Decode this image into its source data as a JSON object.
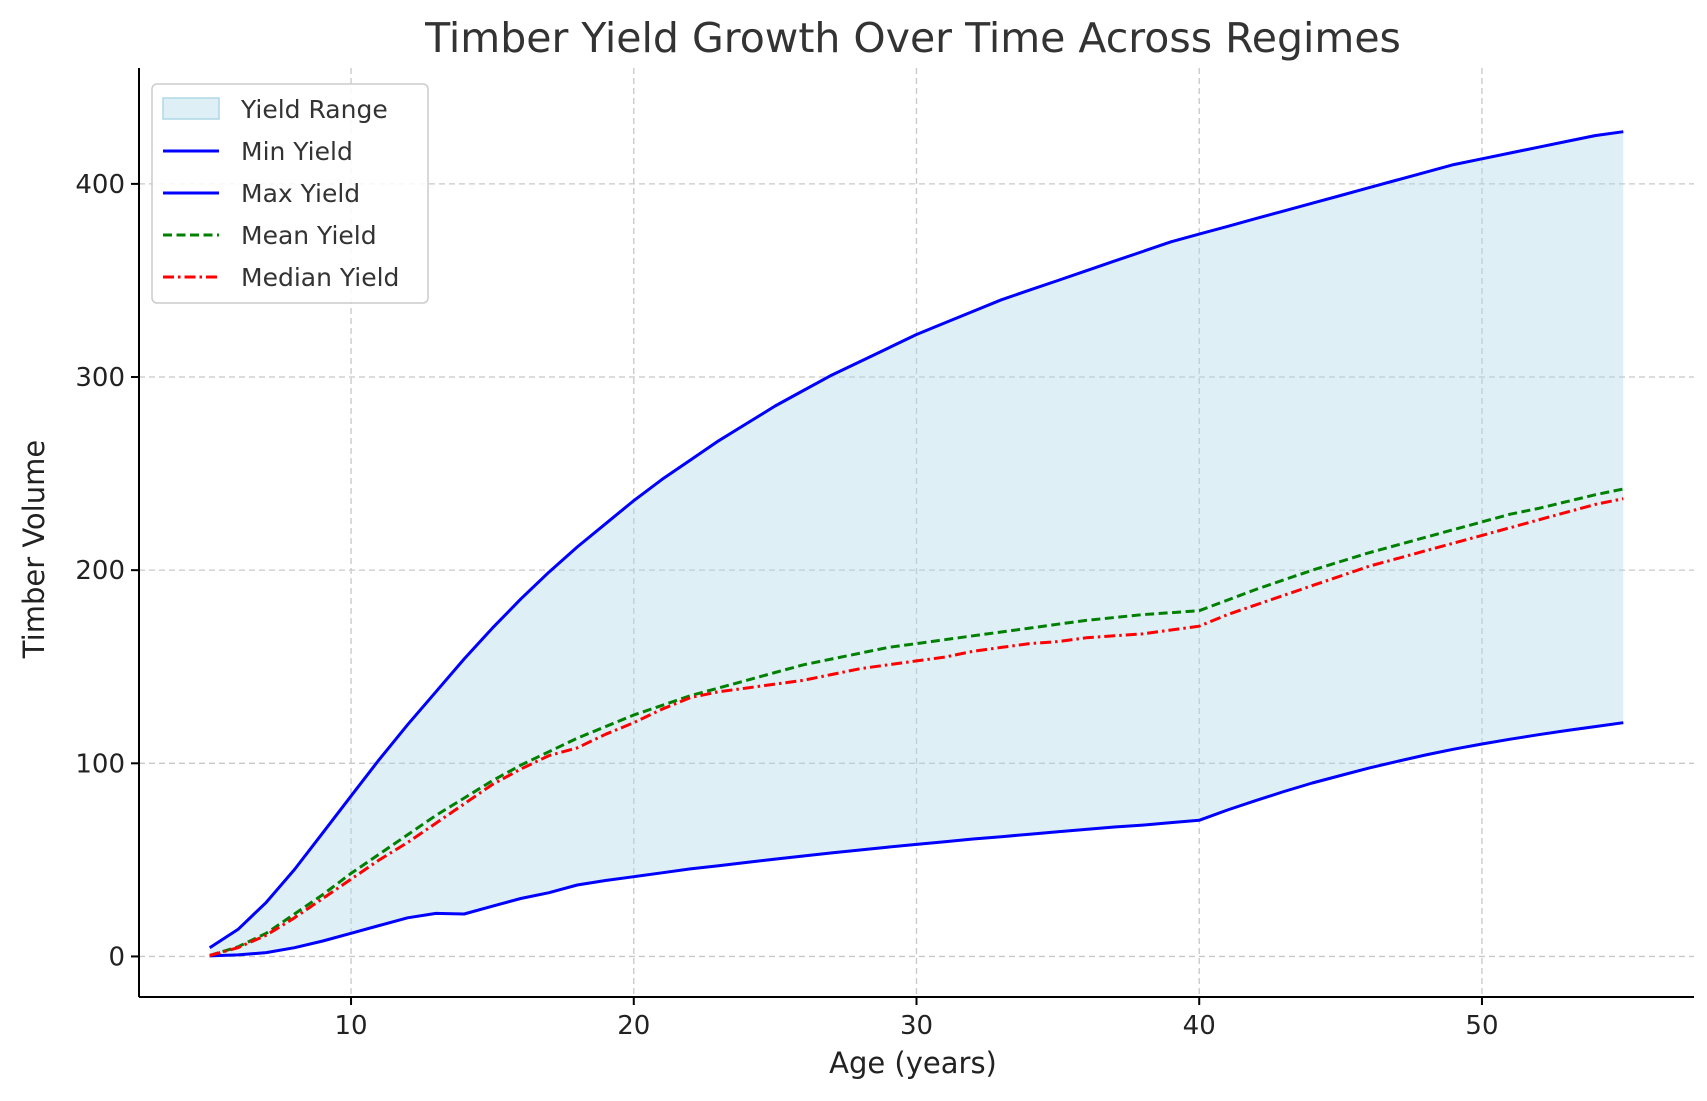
{
  "chart_data": {
    "type": "line",
    "title": "Timber Yield Growth Over Time Across Regimes",
    "xlabel": "Age (years)",
    "ylabel": "Timber Volume",
    "xlim": [
      2.5,
      57.5
    ],
    "ylim": [
      -21,
      460
    ],
    "x_ticks": [
      10,
      20,
      30,
      40,
      50
    ],
    "x_tick_labels": [
      "10",
      "20",
      "30",
      "40",
      "50"
    ],
    "y_ticks": [
      0,
      100,
      200,
      300,
      400
    ],
    "y_tick_labels": [
      "0",
      "100",
      "200",
      "300",
      "400"
    ],
    "grid": true,
    "legend_position": "top-left",
    "x": [
      5,
      6,
      7,
      8,
      9,
      10,
      11,
      12,
      13,
      14,
      15,
      16,
      17,
      18,
      19,
      20,
      21,
      22,
      23,
      24,
      25,
      26,
      27,
      28,
      29,
      30,
      31,
      32,
      33,
      34,
      35,
      36,
      37,
      38,
      39,
      40,
      41,
      42,
      43,
      44,
      45,
      46,
      47,
      48,
      49,
      50,
      51,
      52,
      53,
      54,
      55
    ],
    "range_fill": {
      "name": "Yield Range",
      "color": "#add8e6",
      "opacity": 0.4,
      "lower_series": "Min Yield",
      "upper_series": "Max Yield"
    },
    "series": [
      {
        "name": "Min Yield",
        "color": "#0000ff",
        "style": "solid",
        "values": [
          0.3,
          0.8,
          2,
          4.5,
          8,
          12,
          16,
          20,
          22.3,
          22,
          26,
          30,
          33,
          37,
          39.3,
          41.3,
          43.3,
          45.3,
          47,
          48.7,
          50.4,
          52,
          53.6,
          55.1,
          56.6,
          58,
          59.4,
          60.8,
          62,
          63.3,
          64.6,
          65.8,
          67,
          68,
          69.3,
          70.5,
          75.8,
          80.7,
          85.4,
          89.8,
          93.7,
          97.5,
          101,
          104.3,
          107.3,
          110,
          112.5,
          114.8,
          117,
          119,
          121
        ]
      },
      {
        "name": "Max Yield",
        "color": "#0000ff",
        "style": "solid",
        "values": [
          4.5,
          14,
          28,
          45,
          64,
          83,
          102,
          120,
          137,
          154,
          170,
          185,
          199,
          212,
          224,
          236,
          247,
          257,
          267,
          276,
          285,
          293,
          301,
          308,
          315,
          322,
          328,
          334,
          340,
          345,
          350,
          355,
          360,
          365,
          370,
          374,
          378,
          382,
          386,
          390,
          394,
          398,
          402,
          406,
          410,
          413,
          416,
          419,
          422,
          425,
          427
        ]
      },
      {
        "name": "Mean Yield",
        "color": "#008000",
        "style": "dashed",
        "values": [
          0.5,
          5,
          12,
          22,
          32,
          43,
          53,
          63,
          73,
          82,
          91,
          99,
          106,
          113,
          119,
          125,
          130,
          135,
          139,
          143,
          147,
          151,
          154,
          157,
          160,
          162,
          164,
          166,
          168,
          170,
          172,
          174,
          175.5,
          177,
          178,
          179,
          184.5,
          190,
          195,
          200,
          204.5,
          209,
          213,
          217,
          221,
          225,
          229,
          232,
          235.5,
          239,
          242
        ]
      },
      {
        "name": "Median Yield",
        "color": "#ff0000",
        "style": "dashdot",
        "values": [
          0.5,
          4.5,
          11,
          20,
          30,
          40,
          50,
          59,
          69,
          79,
          89,
          97,
          104,
          108,
          115,
          121,
          128,
          134,
          137,
          139,
          141,
          143,
          146,
          149,
          151,
          153,
          155,
          158,
          160,
          162,
          163,
          165,
          166,
          167,
          169,
          171,
          177,
          182,
          187,
          192,
          197,
          202,
          206,
          210,
          214,
          218,
          222,
          226,
          230,
          234,
          237
        ]
      }
    ]
  }
}
